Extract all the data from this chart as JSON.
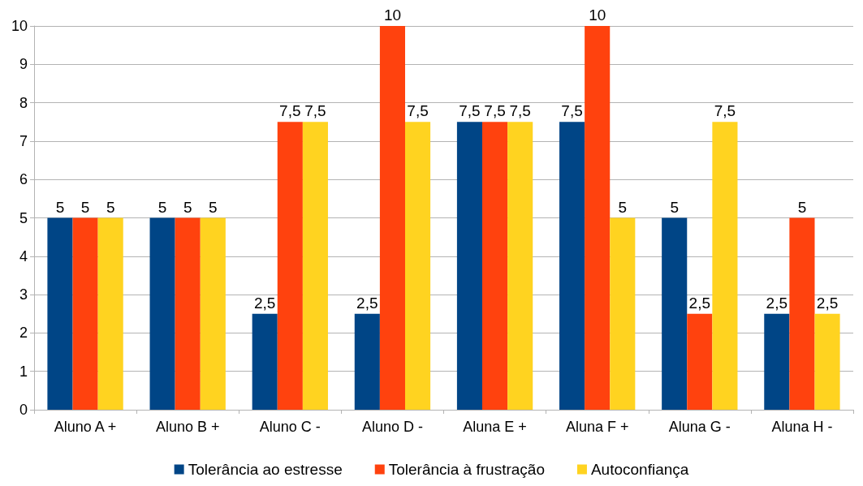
{
  "chart_data": {
    "type": "bar",
    "categories": [
      "Aluno A +",
      "Aluno B +",
      "Aluno C -",
      "Aluno D -",
      "Aluna E +",
      "Aluna F +",
      "Aluna G -",
      "Aluna H -"
    ],
    "series": [
      {
        "name": "Tolerância ao estresse",
        "color": "#004586",
        "values": [
          5,
          5,
          2.5,
          2.5,
          7.5,
          7.5,
          5,
          2.5
        ],
        "value_labels": [
          "5",
          "5",
          "2,5",
          "2,5",
          "7,5",
          "7,5",
          "5",
          "2,5"
        ]
      },
      {
        "name": "Tolerância à frustração",
        "color": "#ff420e",
        "values": [
          5,
          5,
          7.5,
          10,
          7.5,
          10,
          2.5,
          5
        ],
        "value_labels": [
          "5",
          "5",
          "7,5",
          "10",
          "7,5",
          "10",
          "2,5",
          "5"
        ]
      },
      {
        "name": "Autoconfiança",
        "color": "#ffd320",
        "values": [
          5,
          5,
          7.5,
          7.5,
          7.5,
          5,
          7.5,
          2.5
        ],
        "value_labels": [
          "5",
          "5",
          "7,5",
          "7,5",
          "7,5",
          "5",
          "7,5",
          "2,5"
        ]
      }
    ],
    "ylim": [
      0,
      10
    ],
    "yticks": [
      0,
      1,
      2,
      3,
      4,
      5,
      6,
      7,
      8,
      9,
      10
    ],
    "grid": "y",
    "legend": "bottom"
  }
}
